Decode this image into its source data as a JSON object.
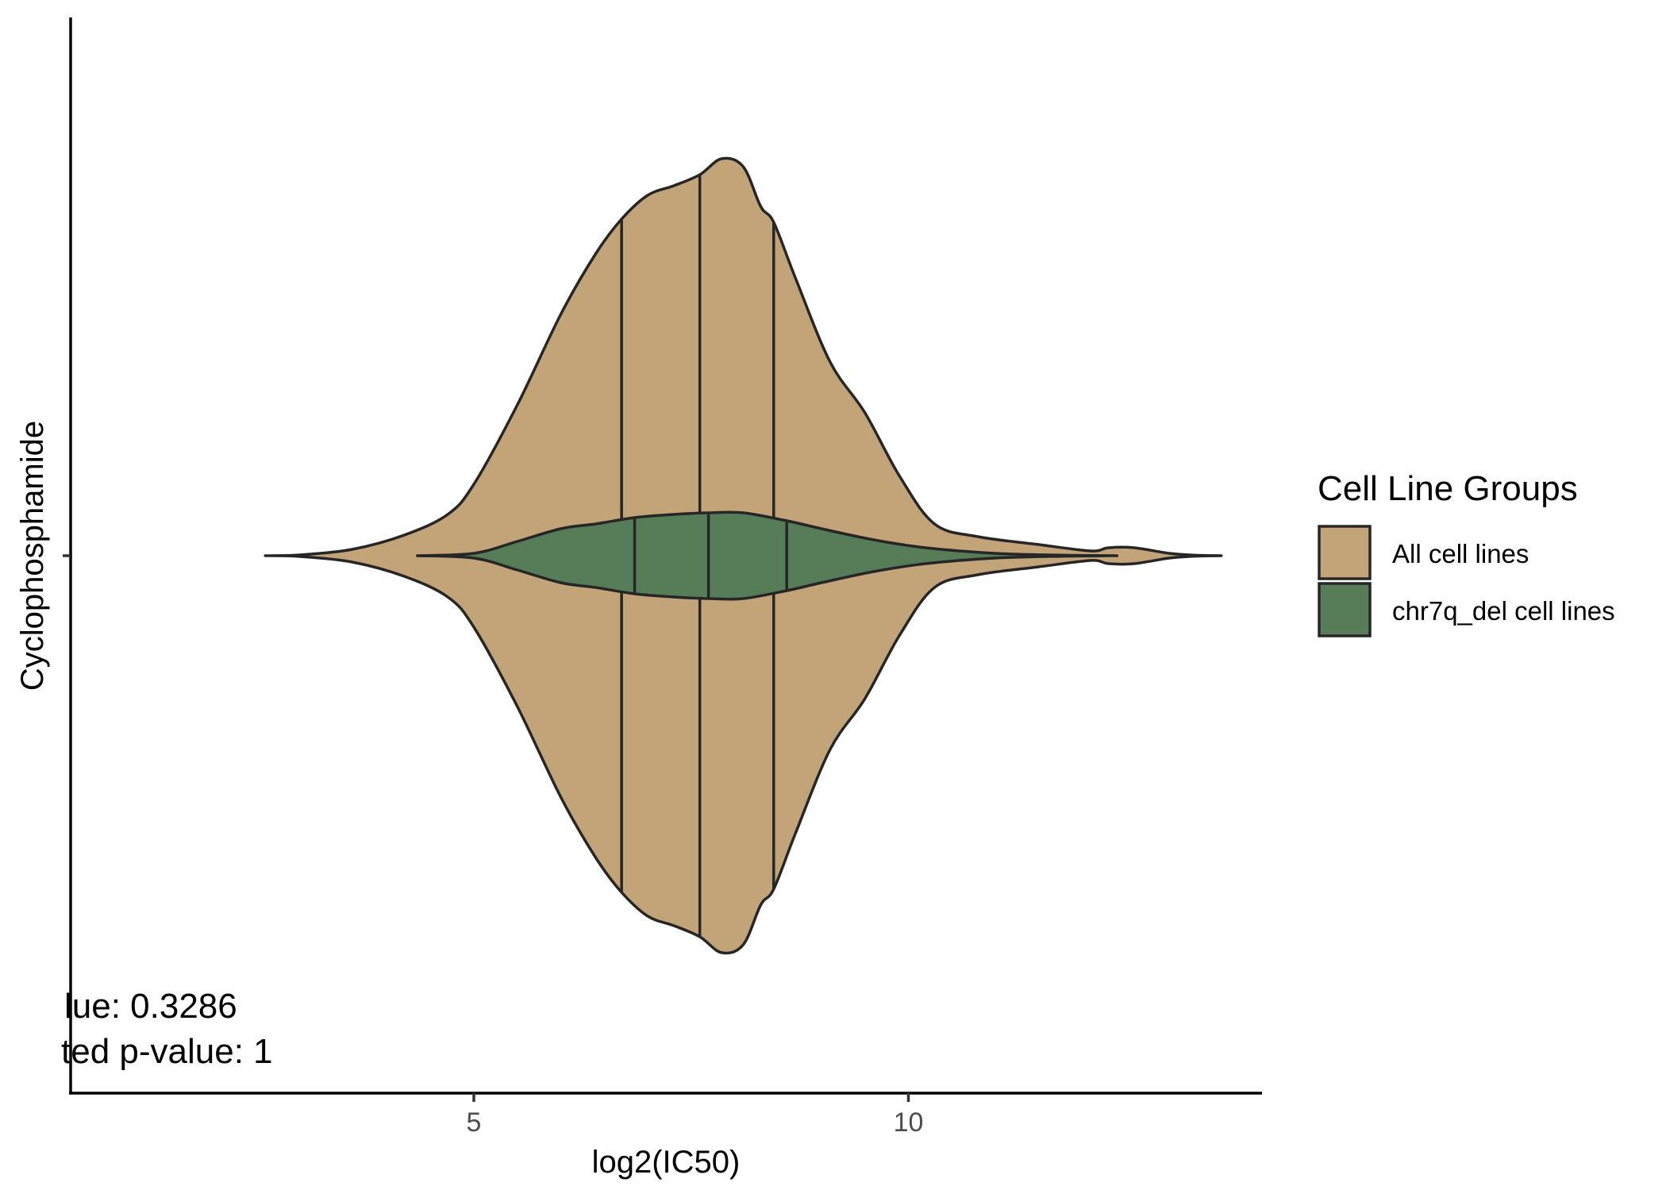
{
  "chart_data": {
    "type": "violin",
    "orientation": "horizontal",
    "xlabel": "log2(IC50)",
    "ylabel": "Cyclophosphamide",
    "category": "Cyclophosphamide",
    "x_ticks": [
      5,
      10
    ],
    "xlim": [
      0.4,
      14.1
    ],
    "grid": false,
    "legend": {
      "title": "Cell Line Groups",
      "position": "right"
    },
    "annotations": [
      "lue: 0.3286",
      "ted p-value: 1"
    ],
    "series": [
      {
        "name": "All cell lines",
        "color": "#C2A478",
        "min": 2.6,
        "max": 13.6,
        "quartiles": [
          6.7,
          7.6,
          8.45
        ],
        "density": [
          [
            2.6,
            0.0
          ],
          [
            3.0,
            0.005
          ],
          [
            3.6,
            0.04
          ],
          [
            4.2,
            0.13
          ],
          [
            4.7,
            0.26
          ],
          [
            5.0,
            0.45
          ],
          [
            5.5,
            0.95
          ],
          [
            6.0,
            1.52
          ],
          [
            6.4,
            1.9
          ],
          [
            6.7,
            2.12
          ],
          [
            7.0,
            2.27
          ],
          [
            7.3,
            2.33
          ],
          [
            7.6,
            2.4
          ],
          [
            7.85,
            2.5
          ],
          [
            8.1,
            2.45
          ],
          [
            8.3,
            2.2
          ],
          [
            8.45,
            2.1
          ],
          [
            8.7,
            1.75
          ],
          [
            9.1,
            1.22
          ],
          [
            9.5,
            0.9
          ],
          [
            9.9,
            0.5
          ],
          [
            10.3,
            0.2
          ],
          [
            10.8,
            0.12
          ],
          [
            11.5,
            0.07
          ],
          [
            12.1,
            0.03
          ],
          [
            12.3,
            0.05
          ],
          [
            12.6,
            0.05
          ],
          [
            13.0,
            0.015
          ],
          [
            13.3,
            0.003
          ],
          [
            13.6,
            0.0
          ]
        ]
      },
      {
        "name": "chr7q_del cell lines",
        "color": "#567D57",
        "min": 4.35,
        "max": 12.4,
        "quartiles": [
          6.85,
          7.7,
          8.6
        ],
        "density": [
          [
            4.35,
            0.0
          ],
          [
            5.0,
            0.015
          ],
          [
            5.5,
            0.09
          ],
          [
            6.0,
            0.17
          ],
          [
            6.4,
            0.2
          ],
          [
            6.85,
            0.24
          ],
          [
            7.3,
            0.26
          ],
          [
            7.7,
            0.27
          ],
          [
            8.1,
            0.27
          ],
          [
            8.6,
            0.22
          ],
          [
            9.0,
            0.17
          ],
          [
            9.6,
            0.1
          ],
          [
            10.2,
            0.05
          ],
          [
            11.0,
            0.015
          ],
          [
            11.8,
            0.003
          ],
          [
            12.4,
            0.0
          ]
        ]
      }
    ]
  }
}
